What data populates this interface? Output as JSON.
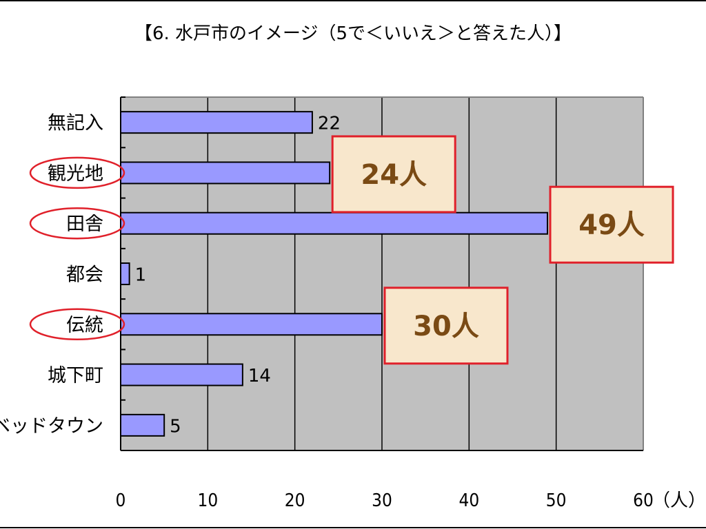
{
  "chart_data": {
    "type": "bar",
    "orientation": "horizontal",
    "title": "【6. 水戸市のイメージ（5で＜いいえ＞と答えた人）】",
    "categories": [
      "無記入",
      "観光地",
      "田舎",
      "都会",
      "伝統",
      "城下町",
      "ベッドタウン"
    ],
    "values": [
      22,
      24,
      49,
      1,
      30,
      14,
      5
    ],
    "value_labels": [
      "22",
      "",
      "",
      "1",
      "",
      "14",
      "5"
    ],
    "xlim": [
      0,
      60
    ],
    "xticks": [
      "0",
      "10",
      "20",
      "30",
      "40",
      "50",
      "60"
    ],
    "xlabel": "（人）",
    "ylabel": "",
    "grid": true,
    "legend": "none",
    "circled_categories": [
      "観光地",
      "田舎",
      "伝統"
    ],
    "callouts": [
      {
        "category": "観光地",
        "text": "24人"
      },
      {
        "category": "田舎",
        "text": "49人"
      },
      {
        "category": "伝統",
        "text": "30人"
      }
    ],
    "colors": {
      "bar_fill": "#9999ff",
      "bar_stroke": "#000000",
      "plot_background": "#c0c0c0",
      "callout_fill": "#f8e7cc",
      "callout_border": "#e0202a",
      "callout_text": "#7a4a14",
      "circle_stroke": "#e0202a"
    }
  }
}
